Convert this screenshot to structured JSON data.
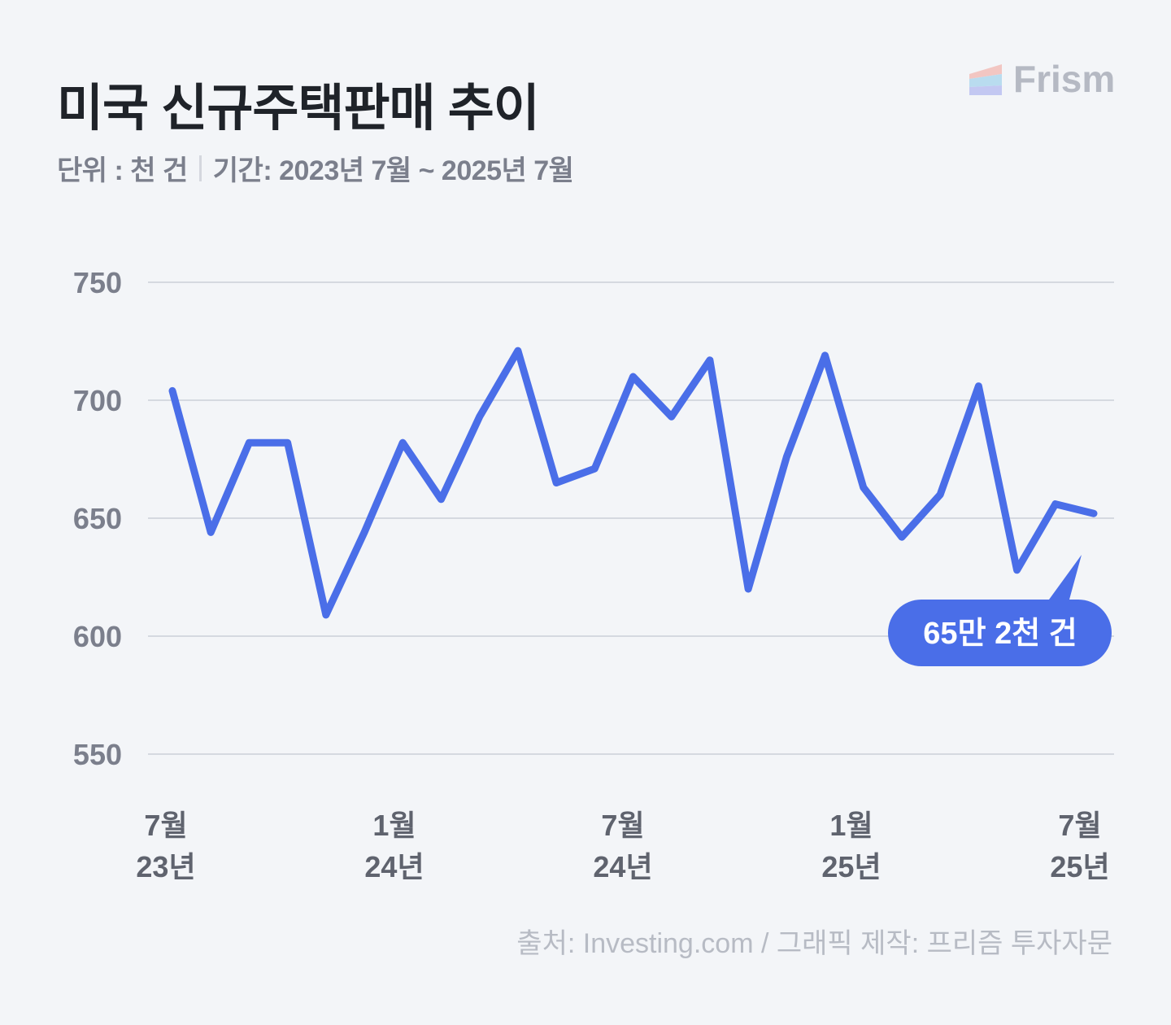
{
  "header": {
    "title": "미국 신규주택판매 추이",
    "unit": "단위 : 천 건",
    "period": "기간: 2023년 7월 ~ 2025년 7월",
    "logo": "Frism"
  },
  "footer": {
    "source": "출처: Investing.com / 그래픽 제작: 프리즘 투자자문"
  },
  "colors": {
    "line": "#4a6ee8",
    "grid": "#d5d9e0",
    "background": "#f3f5f8"
  },
  "chart_data": {
    "type": "line",
    "title": "미국 신규주택판매 추이",
    "ylabel": "천 건",
    "ylim": [
      550,
      750
    ],
    "yticks": [
      750,
      700,
      650,
      600,
      550
    ],
    "grid": true,
    "x": [
      "2023-07",
      "2023-08",
      "2023-09",
      "2023-10",
      "2023-11",
      "2023-12",
      "2024-01",
      "2024-02",
      "2024-03",
      "2024-04",
      "2024-05",
      "2024-06",
      "2024-07",
      "2024-08",
      "2024-09",
      "2024-10",
      "2024-11",
      "2024-12",
      "2025-01",
      "2025-02",
      "2025-03",
      "2025-04",
      "2025-05",
      "2025-06",
      "2025-07"
    ],
    "xticks": [
      {
        "index": 0,
        "line1": "7월",
        "line2": "23년"
      },
      {
        "index": 6,
        "line1": "1월",
        "line2": "24년"
      },
      {
        "index": 12,
        "line1": "7월",
        "line2": "24년"
      },
      {
        "index": 18,
        "line1": "1월",
        "line2": "25년"
      },
      {
        "index": 24,
        "line1": "7월",
        "line2": "25년"
      }
    ],
    "series": [
      {
        "name": "신규주택판매",
        "values": [
          704,
          644,
          682,
          682,
          609,
          644,
          682,
          658,
          693,
          721,
          665,
          671,
          710,
          693,
          717,
          620,
          676,
          719,
          663,
          642,
          660,
          706,
          628,
          656,
          652
        ]
      }
    ],
    "annotation": {
      "index": 24,
      "text": "65만 2천 건"
    }
  }
}
